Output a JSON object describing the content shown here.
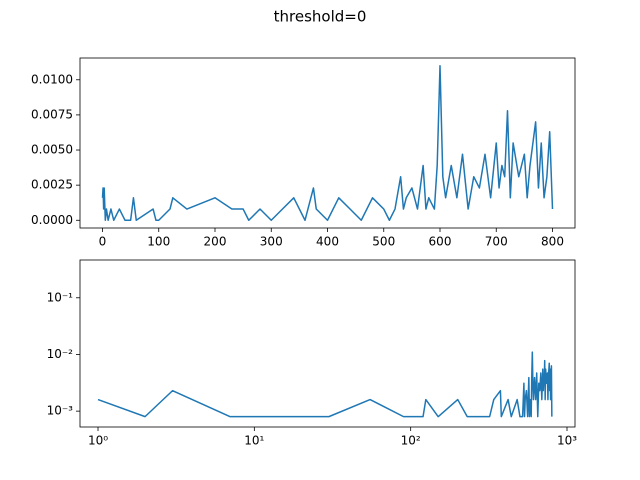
{
  "chart_data": [
    {
      "type": "line",
      "title": "threshold=0",
      "xscale": "linear",
      "yscale": "linear",
      "x": [
        0,
        1,
        2,
        3,
        5,
        7,
        10,
        15,
        20,
        30,
        40,
        50,
        55,
        60,
        90,
        95,
        100,
        120,
        125,
        150,
        200,
        230,
        250,
        260,
        280,
        300,
        320,
        340,
        360,
        375,
        380,
        400,
        420,
        440,
        460,
        480,
        500,
        510,
        520,
        530,
        535,
        540,
        550,
        560,
        570,
        575,
        580,
        590,
        595,
        600,
        605,
        610,
        620,
        630,
        640,
        650,
        660,
        670,
        680,
        690,
        700,
        705,
        710,
        715,
        720,
        725,
        730,
        740,
        750,
        755,
        760,
        770,
        775,
        780,
        785,
        790,
        795,
        800
      ],
      "series": [
        {
          "color": "#1f77b4",
          "values": [
            0.0016,
            0.0023,
            0.0008,
            0.0023,
            0,
            0.0008,
            0,
            0.0008,
            0,
            0.0008,
            0,
            0,
            0.0016,
            0,
            0.0008,
            0,
            0,
            0.0008,
            0.0016,
            0.0008,
            0.0016,
            0.0008,
            0.0008,
            0,
            0.0008,
            0,
            0.0008,
            0.0016,
            0,
            0.0023,
            0.0008,
            0,
            0.0016,
            0.0008,
            0,
            0.0016,
            0.0008,
            0,
            0.0008,
            0.0031,
            0.0008,
            0.0016,
            0.0023,
            0.0008,
            0.0039,
            0.0008,
            0.0016,
            0.0008,
            0.0039,
            0.011,
            0.0031,
            0.0016,
            0.0039,
            0.0016,
            0.0047,
            0.0008,
            0.0031,
            0.0023,
            0.0047,
            0.0016,
            0.0055,
            0.0023,
            0.0039,
            0.0031,
            0.0078,
            0.0016,
            0.0055,
            0.0031,
            0.0047,
            0.0016,
            0.0039,
            0.007,
            0.0023,
            0.0055,
            0.0016,
            0.0031,
            0.0063,
            0.0008
          ]
        }
      ],
      "xlim": [
        -40,
        840
      ],
      "xticks": [
        0,
        100,
        200,
        300,
        400,
        500,
        600,
        700,
        800
      ],
      "ylim": [
        -0.00055,
        0.01155
      ],
      "yticks": [
        {
          "value": 0,
          "label": "0.0000"
        },
        {
          "value": 0.0025,
          "label": "0.0025"
        },
        {
          "value": 0.005,
          "label": "0.0050"
        },
        {
          "value": 0.0075,
          "label": "0.0075"
        },
        {
          "value": 0.01,
          "label": "0.0100"
        }
      ]
    },
    {
      "type": "line",
      "xscale": "log",
      "yscale": "log",
      "x": [
        1,
        2,
        3,
        7,
        15,
        30,
        55,
        90,
        120,
        125,
        150,
        200,
        230,
        250,
        280,
        320,
        340,
        375,
        380,
        420,
        440,
        480,
        500,
        520,
        530,
        535,
        540,
        550,
        560,
        570,
        575,
        580,
        590,
        595,
        600,
        605,
        610,
        620,
        630,
        640,
        650,
        660,
        670,
        680,
        690,
        700,
        705,
        710,
        715,
        720,
        725,
        730,
        740,
        750,
        755,
        760,
        770,
        775,
        780,
        785,
        790,
        795,
        800
      ],
      "series": [
        {
          "color": "#1f77b4",
          "values": [
            0.0016,
            0.0008,
            0.0023,
            0.0008,
            0.0008,
            0.0008,
            0.0016,
            0.0008,
            0.0008,
            0.0016,
            0.0008,
            0.0016,
            0.0008,
            0.0008,
            0.0008,
            0.0008,
            0.0016,
            0.0023,
            0.0008,
            0.0016,
            0.0008,
            0.0016,
            0.0008,
            0.0008,
            0.0031,
            0.0008,
            0.0016,
            0.0023,
            0.0008,
            0.0039,
            0.0008,
            0.0016,
            0.0008,
            0.0039,
            0.011,
            0.0031,
            0.0016,
            0.0039,
            0.0016,
            0.0047,
            0.0008,
            0.0031,
            0.0023,
            0.0047,
            0.0016,
            0.0055,
            0.0023,
            0.0039,
            0.0031,
            0.0078,
            0.0016,
            0.0055,
            0.0031,
            0.0047,
            0.0016,
            0.0039,
            0.007,
            0.0023,
            0.0055,
            0.0016,
            0.0031,
            0.0063,
            0.0008
          ]
        }
      ],
      "xlim": [
        0.767,
        1125
      ],
      "xticks": [
        {
          "value": 1,
          "label": "10⁰"
        },
        {
          "value": 10,
          "label": "10¹"
        },
        {
          "value": 100,
          "label": "10²"
        },
        {
          "value": 1000,
          "label": "10³"
        }
      ],
      "ylim": [
        0.000525,
        0.464
      ],
      "yticks": [
        {
          "value": 0.001,
          "label": "10⁻³"
        },
        {
          "value": 0.01,
          "label": "10⁻²"
        },
        {
          "value": 0.1,
          "label": "10⁻¹"
        }
      ]
    }
  ]
}
